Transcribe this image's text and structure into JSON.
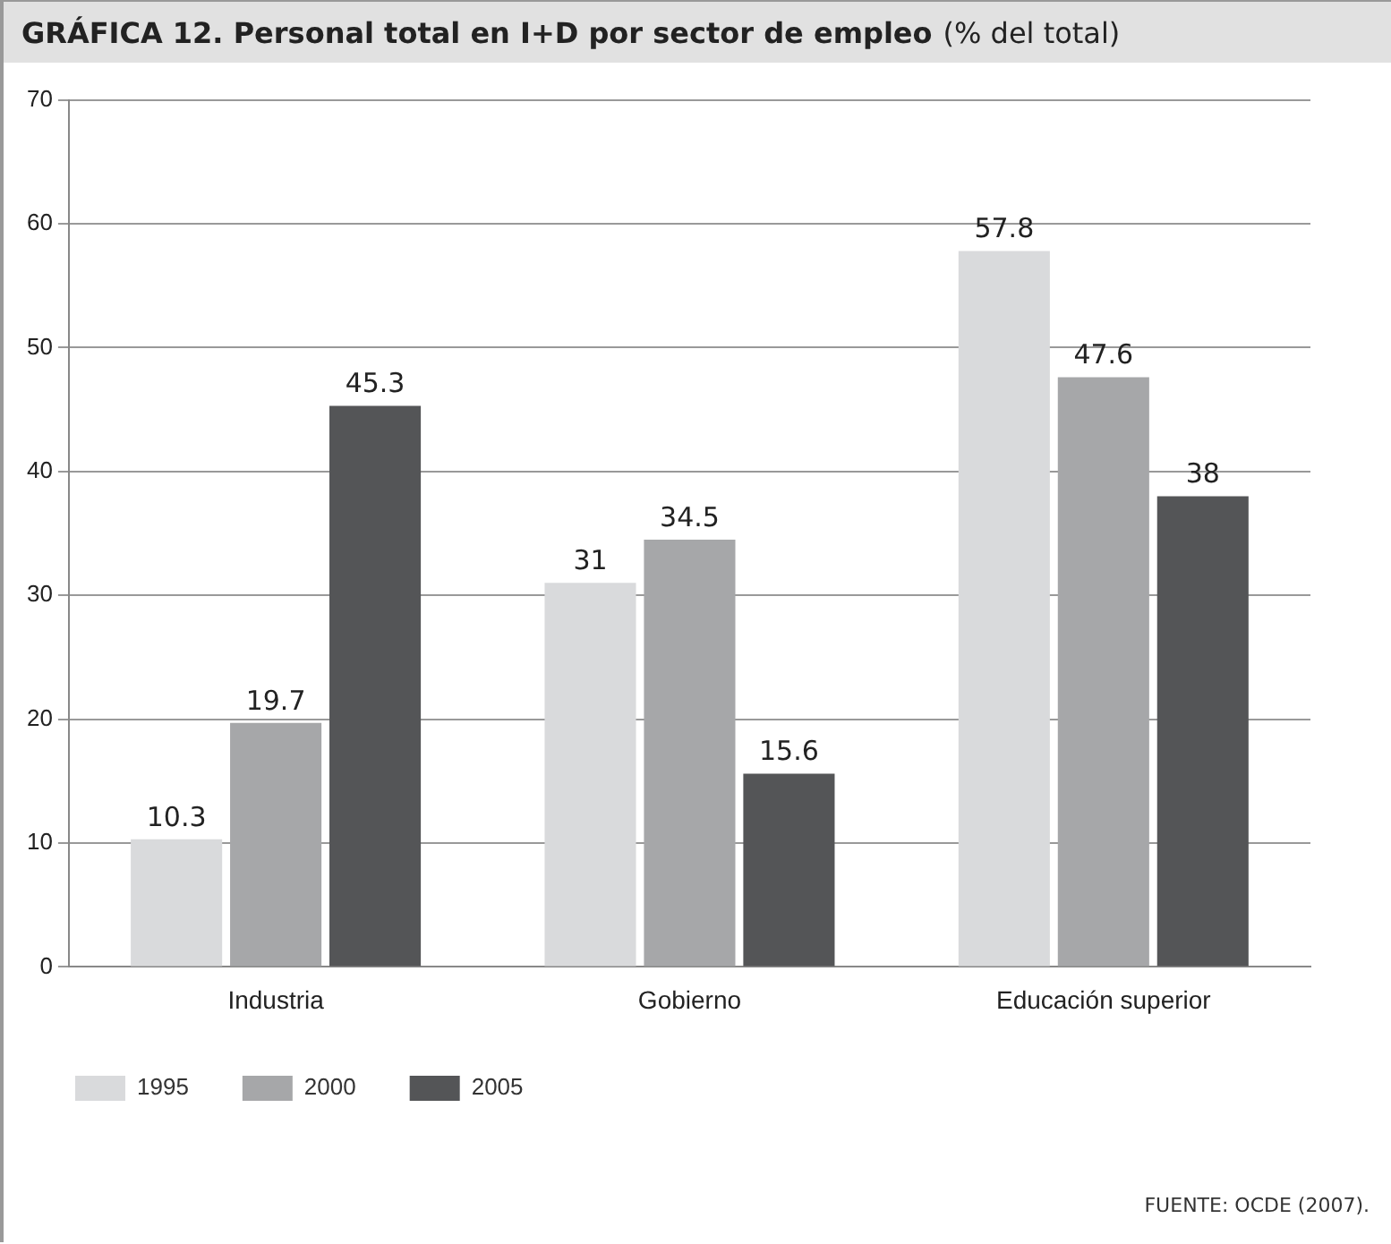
{
  "chart_data": {
    "type": "bar",
    "title": "GRÁFICA 12. Personal total en I+D por sector de empleo",
    "subtitle": "(% del total)",
    "categories": [
      "Industria",
      "Gobierno",
      "Educación superior"
    ],
    "series": [
      {
        "name": "1995",
        "color": "#d9dadc",
        "values": [
          10.3,
          31,
          57.8
        ]
      },
      {
        "name": "2000",
        "color": "#a6a7a9",
        "values": [
          19.7,
          34.5,
          47.6
        ]
      },
      {
        "name": "2005",
        "color": "#545557",
        "values": [
          45.3,
          15.6,
          38
        ]
      }
    ],
    "ylim": [
      0,
      70
    ],
    "yticks": [
      0,
      10,
      20,
      30,
      40,
      50,
      60,
      70
    ],
    "grid": "y",
    "legend": "bottom left",
    "data_labels": true,
    "annotations": [
      "FUENTE: OCDE (2007)."
    ]
  }
}
